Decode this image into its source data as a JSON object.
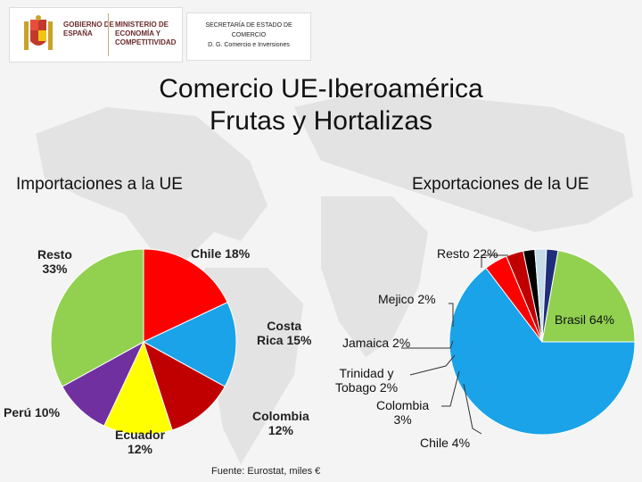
{
  "header": {
    "gobierno": "GOBIERNO DE ESPAÑA",
    "ministerio": "MINISTERIO DE ECONOMÍA Y COMPETITIVIDAD",
    "secretaria": [
      "SECRETARÍA DE ESTADO DE",
      "COMERCIO",
      "D. G. Comercio e Inversiones"
    ]
  },
  "title_line1": "Comercio UE-Iberoamérica",
  "title_line2": "Frutas y Hortalizas",
  "source": "Fuente: Eurostat, miles €",
  "colors": {
    "red": "#ff0000",
    "blue": "#1aa3e8",
    "darkred": "#c00000",
    "yellow": "#ffff00",
    "purple": "#7030a0",
    "green": "#92d050",
    "navy": "#1f2d7a",
    "lightblue": "#c5dbe8",
    "black": "#000000"
  },
  "chart_data": [
    {
      "type": "pie",
      "title": "Importaciones a la UE",
      "series": [
        {
          "label": "Chile 18%",
          "value": 18,
          "color": "#ff0000"
        },
        {
          "label": "Costa Rica 15%",
          "value": 15,
          "color": "#1aa3e8"
        },
        {
          "label": "Colombia 12%",
          "value": 12,
          "color": "#c00000"
        },
        {
          "label": "Ecuador 12%",
          "value": 12,
          "color": "#ffff00"
        },
        {
          "label": "Perú 10%",
          "value": 10,
          "color": "#7030a0"
        },
        {
          "label": "Resto 33%",
          "value": 33,
          "color": "#92d050"
        }
      ]
    },
    {
      "type": "pie",
      "title": "Exportaciones de la UE",
      "series": [
        {
          "label": "Brasil 64%",
          "value": 64,
          "color": "#1aa3e8"
        },
        {
          "label": "Chile 4%",
          "value": 4,
          "color": "#ff0000"
        },
        {
          "label": "Colombia 3%",
          "value": 3,
          "color": "#c00000"
        },
        {
          "label": "Trinidad y Tobago 2%",
          "value": 2,
          "color": "#000000"
        },
        {
          "label": "Jamaica 2%",
          "value": 2,
          "color": "#c5dbe8"
        },
        {
          "label": "Mejico 2%",
          "value": 2,
          "color": "#1f2d7a"
        },
        {
          "label": "Resto 22%",
          "value": 22,
          "color": "#92d050"
        }
      ]
    }
  ]
}
